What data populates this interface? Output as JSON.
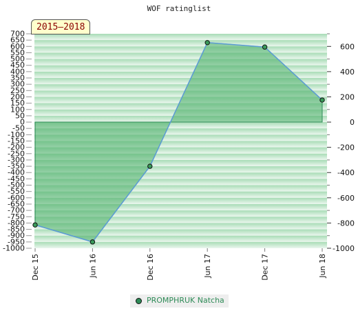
{
  "title": "WOF ratinglist",
  "badge": "2015–2018",
  "colors": {
    "line": "#5b9bd5",
    "area": "#4caf6a",
    "marker": "#3a9a5a",
    "legend_text": "#2e8b57",
    "band_dark": "#a8dcb6",
    "band_light": "#ecf7ef"
  },
  "chart_data": {
    "type": "area",
    "title": "WOF ratinglist",
    "x": [
      "Dec 15",
      "Jun 16",
      "Dec 16",
      "Jun 17",
      "Dec 17",
      "Jun 18"
    ],
    "series": [
      {
        "name": "PROMPHRUK Natcha",
        "values": [
          -815,
          -950,
          -350,
          630,
          595,
          175
        ]
      }
    ],
    "y_left": {
      "ylim": [
        -1000,
        700
      ],
      "ticks": [
        700,
        650,
        600,
        550,
        500,
        450,
        400,
        350,
        300,
        250,
        200,
        150,
        100,
        50,
        0,
        -50,
        -100,
        -150,
        -200,
        -250,
        -300,
        -350,
        -400,
        -450,
        -500,
        -550,
        -600,
        -650,
        -700,
        -750,
        -800,
        -850,
        -900,
        -950,
        -1000
      ]
    },
    "y_right": {
      "ticks": [
        600,
        400,
        200,
        0,
        -200,
        -400,
        -600,
        -800,
        -1000
      ]
    },
    "legend": "bottom-center",
    "grid": true
  }
}
